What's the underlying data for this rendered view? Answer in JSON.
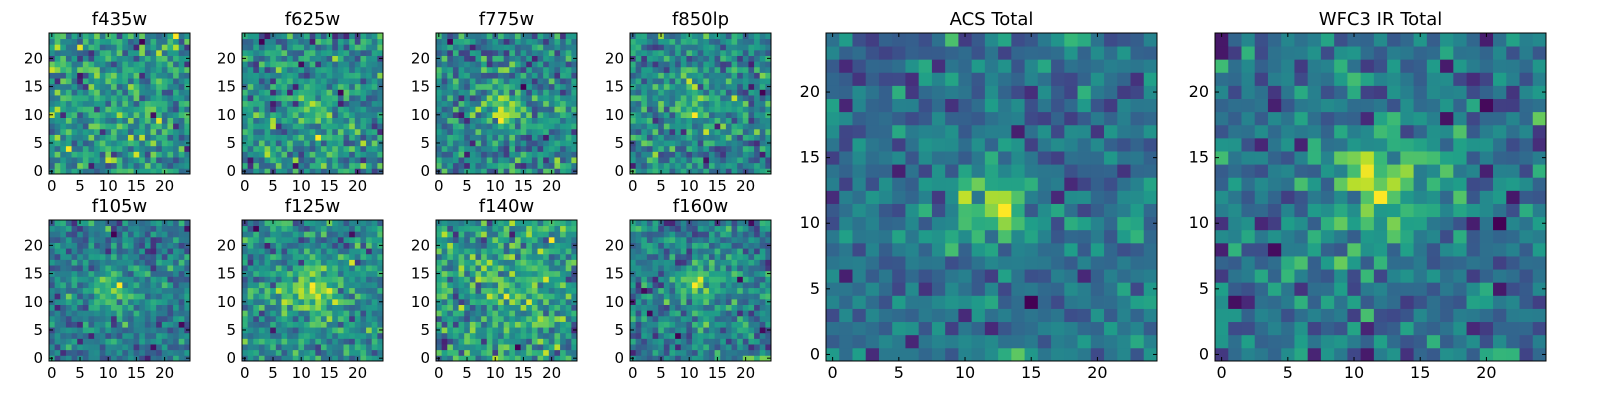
{
  "chart_data": [
    {
      "type": "heatmap",
      "title": "f435w",
      "xticks": [
        "0",
        "5",
        "10",
        "15",
        "20"
      ],
      "yticks": [
        "0",
        "5",
        "10",
        "15",
        "20"
      ],
      "xlim": [
        -0.5,
        24.5
      ],
      "ylim": [
        -0.5,
        24.5
      ],
      "grid_size": 25,
      "colormap": "viridis",
      "seed": 11,
      "source_amp": 0.1,
      "source_x": 12,
      "source_y": 12,
      "source_sigma": 3.0,
      "noise": 0.55
    },
    {
      "type": "heatmap",
      "title": "f625w",
      "xticks": [
        "0",
        "5",
        "10",
        "15",
        "20"
      ],
      "yticks": [
        "0",
        "5",
        "10",
        "15",
        "20"
      ],
      "xlim": [
        -0.5,
        24.5
      ],
      "ylim": [
        -0.5,
        24.5
      ],
      "grid_size": 25,
      "colormap": "viridis",
      "seed": 23,
      "source_amp": 0.25,
      "source_x": 12,
      "source_y": 11,
      "source_sigma": 2.5,
      "noise": 0.55
    },
    {
      "type": "heatmap",
      "title": "f775w",
      "xticks": [
        "0",
        "5",
        "10",
        "15",
        "20"
      ],
      "yticks": [
        "0",
        "5",
        "10",
        "15",
        "20"
      ],
      "xlim": [
        -0.5,
        24.5
      ],
      "ylim": [
        -0.5,
        24.5
      ],
      "grid_size": 25,
      "colormap": "viridis",
      "seed": 37,
      "source_amp": 0.35,
      "source_x": 12,
      "source_y": 11,
      "source_sigma": 2.5,
      "noise": 0.55
    },
    {
      "type": "heatmap",
      "title": "f850lp",
      "xticks": [
        "0",
        "5",
        "10",
        "15",
        "20"
      ],
      "yticks": [
        "0",
        "5",
        "10",
        "15",
        "20"
      ],
      "xlim": [
        -0.5,
        24.5
      ],
      "ylim": [
        -0.5,
        24.5
      ],
      "grid_size": 25,
      "colormap": "viridis",
      "seed": 41,
      "source_amp": 0.3,
      "source_x": 12,
      "source_y": 12,
      "source_sigma": 2.5,
      "noise": 0.55
    },
    {
      "type": "heatmap",
      "title": "f105w",
      "xticks": [
        "0",
        "5",
        "10",
        "15",
        "20"
      ],
      "yticks": [
        "0",
        "5",
        "10",
        "15",
        "20"
      ],
      "xlim": [
        -0.5,
        24.5
      ],
      "ylim": [
        -0.5,
        24.5
      ],
      "grid_size": 25,
      "colormap": "viridis",
      "seed": 53,
      "source_amp": 0.3,
      "source_x": 11,
      "source_y": 12,
      "source_sigma": 3.0,
      "noise": 0.4
    },
    {
      "type": "heatmap",
      "title": "f125w",
      "xticks": [
        "0",
        "5",
        "10",
        "15",
        "20"
      ],
      "yticks": [
        "0",
        "5",
        "10",
        "15",
        "20"
      ],
      "xlim": [
        -0.5,
        24.5
      ],
      "ylim": [
        -0.5,
        24.5
      ],
      "grid_size": 25,
      "colormap": "viridis",
      "seed": 67,
      "source_amp": 0.4,
      "source_x": 12,
      "source_y": 12,
      "source_sigma": 3.0,
      "noise": 0.45
    },
    {
      "type": "heatmap",
      "title": "f140w",
      "xticks": [
        "0",
        "5",
        "10",
        "15",
        "20"
      ],
      "yticks": [
        "0",
        "5",
        "10",
        "15",
        "20"
      ],
      "xlim": [
        -0.5,
        24.5
      ],
      "ylim": [
        -0.5,
        24.5
      ],
      "grid_size": 25,
      "colormap": "viridis",
      "seed": 79,
      "source_amp": 0.2,
      "source_x": 12,
      "source_y": 12,
      "source_sigma": 3.0,
      "noise": 0.5
    },
    {
      "type": "heatmap",
      "title": "f160w",
      "xticks": [
        "0",
        "5",
        "10",
        "15",
        "20"
      ],
      "yticks": [
        "0",
        "5",
        "10",
        "15",
        "20"
      ],
      "xlim": [
        -0.5,
        24.5
      ],
      "ylim": [
        -0.5,
        24.5
      ],
      "grid_size": 25,
      "colormap": "viridis",
      "seed": 83,
      "source_amp": 0.3,
      "source_x": 12,
      "source_y": 13,
      "source_sigma": 3.0,
      "noise": 0.45
    },
    {
      "type": "heatmap",
      "title": "ACS Total",
      "xticks": [
        "0",
        "5",
        "10",
        "15",
        "20"
      ],
      "yticks": [
        "0",
        "5",
        "10",
        "15",
        "20"
      ],
      "xlim": [
        -0.5,
        24.5
      ],
      "ylim": [
        -0.5,
        24.5
      ],
      "grid_size": 25,
      "colormap": "viridis",
      "seed": 97,
      "source_amp": 0.45,
      "source_x": 12,
      "source_y": 11,
      "source_sigma": 2.2,
      "noise": 0.4
    },
    {
      "type": "heatmap",
      "title": "WFC3 IR Total",
      "xticks": [
        "0",
        "5",
        "10",
        "15",
        "20"
      ],
      "yticks": [
        "0",
        "5",
        "10",
        "15",
        "20"
      ],
      "xlim": [
        -0.5,
        24.5
      ],
      "ylim": [
        -0.5,
        24.5
      ],
      "grid_size": 25,
      "colormap": "viridis",
      "seed": 101,
      "source_amp": 0.45,
      "source_x": 12,
      "source_y": 13,
      "source_sigma": 3.0,
      "noise": 0.4
    }
  ],
  "colors": {
    "axis": "#000000",
    "background": "#ffffff"
  }
}
